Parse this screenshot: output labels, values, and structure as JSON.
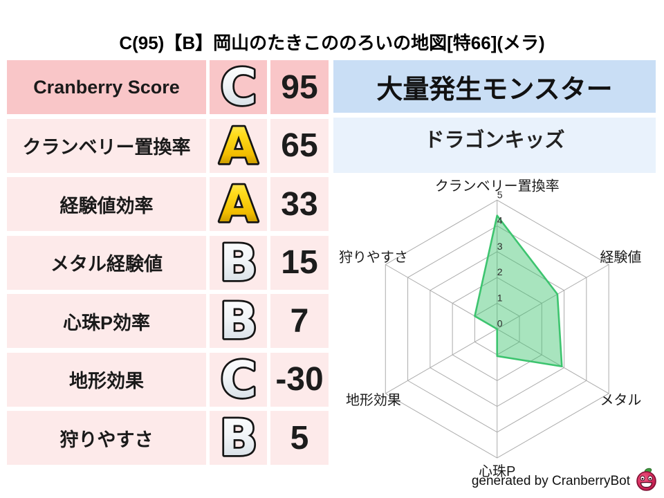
{
  "title": "C(95)【B】岡山のたきこののろいの地図[特66](メラ)",
  "table": {
    "rows": [
      {
        "label": "Cranberry Score",
        "grade": "C",
        "value": "95"
      },
      {
        "label": "クランベリー置換率",
        "grade": "A",
        "value": "65"
      },
      {
        "label": "経験値効率",
        "grade": "A",
        "value": "33"
      },
      {
        "label": "メタル経験値",
        "grade": "B",
        "value": "15"
      },
      {
        "label": "心珠P効率",
        "grade": "B",
        "value": "7"
      },
      {
        "label": "地形効果",
        "grade": "C",
        "value": "-30"
      },
      {
        "label": "狩りやすさ",
        "grade": "B",
        "value": "5"
      }
    ]
  },
  "panel": {
    "header": "大量発生モンスター",
    "monster": "ドラゴンキッズ"
  },
  "footer": {
    "credit": "generated by CranberryBot",
    "icon": "cranberry-mascot-icon"
  },
  "icons": [
    "grade-badge-icon",
    "cranberry-mascot-icon"
  ],
  "colors": {
    "row_first_bg": "#f9c6c8",
    "row_bg": "#fdeaea",
    "header_bg": "#c9def5",
    "monster_bg": "#e9f2fc",
    "grade_gold": "#fccc00",
    "grade_silver": "#dfe6ec",
    "radar_green": "#3dc46f",
    "berry_red": "#d62d5e",
    "leaf_green": "#3f9b3f"
  },
  "grade_styles": {
    "A": "gold",
    "B": "silver",
    "C": "silver"
  },
  "chart_data": {
    "type": "radar",
    "categories": [
      "クランベリー置換率",
      "経験値",
      "メタル",
      "心珠P",
      "地形効果",
      "狩りやすさ"
    ],
    "values": [
      4.4,
      2.7,
      2.9,
      1.05,
      0,
      1.0
    ],
    "ticks": [
      0,
      1,
      2,
      3,
      4,
      5
    ],
    "max": 5,
    "grid": true,
    "legend": "none",
    "line_color": "#3dc46f",
    "fill_opacity": 0.45,
    "grid_color": "#ababab",
    "tick_label_color": "#2b2b2b",
    "axis_label_color": "#1a1a1a"
  }
}
